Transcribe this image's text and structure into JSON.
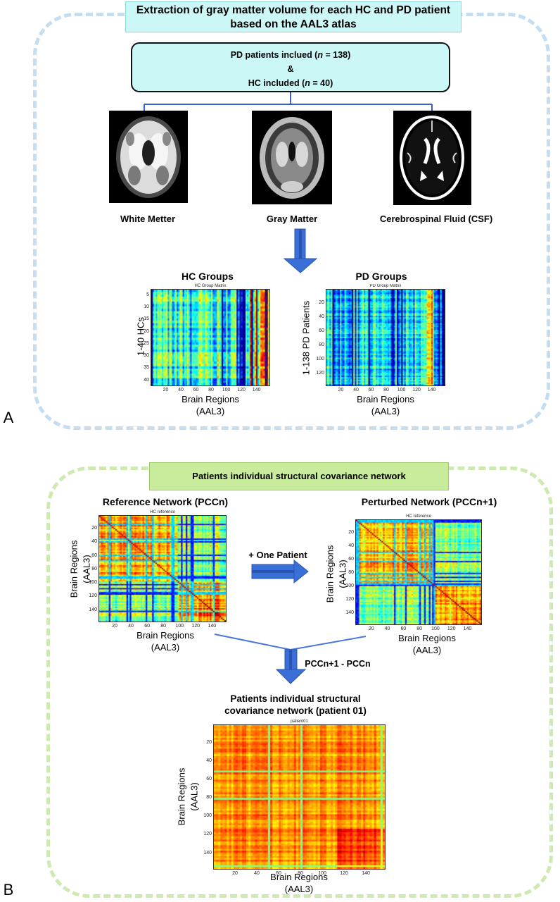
{
  "panel_a": {
    "letter": "A",
    "top_box": "Extraction of gray matter volume for each HC and PD patient based on the AAL3 atlas",
    "included": {
      "pd_prefix": "PD patients inclued (",
      "pd_n": "n",
      "pd_suffix": " = 138)",
      "amp": "&",
      "hc_prefix": "HC included (",
      "hc_n": "n",
      "hc_suffix": " = 40)"
    },
    "tissues": [
      "White Metter",
      "Gray Matter",
      "Cerebrospinal Fluid (CSF)"
    ],
    "hc": {
      "heading": "HC Groups",
      "matrix_title": "HC Group Matrix",
      "ylabel": "1-40 HCs",
      "xlabel_1": "Brain Regions",
      "xlabel_2": "(AAL3)",
      "yticks": [
        "5",
        "10",
        "15",
        "20",
        "25",
        "30",
        "35",
        "40"
      ],
      "xticks": [
        "20",
        "40",
        "60",
        "80",
        "100",
        "120",
        "140"
      ]
    },
    "pd": {
      "heading": "PD Groups",
      "matrix_title": "PD Group Matrix",
      "ylabel": "1-138 PD Patients",
      "xlabel_1": "Brain Regions",
      "xlabel_2": "(AAL3)",
      "yticks": [
        "20",
        "40",
        "60",
        "80",
        "100",
        "120"
      ],
      "xticks": [
        "20",
        "40",
        "60",
        "80",
        "100",
        "120",
        "140"
      ]
    }
  },
  "panel_b": {
    "letter": "B",
    "top_box": "Patients individual structural covariance network",
    "reference": {
      "heading": "Reference Network (PCCn)",
      "matrix_title": "HC reference",
      "ylabel_1": "Brain Regions",
      "ylabel_2": "(AAL3)",
      "xlabel_1": "Brain Regions",
      "xlabel_2": "(AAL3)",
      "ticks": [
        "20",
        "40",
        "60",
        "80",
        "100",
        "120",
        "140"
      ]
    },
    "perturbed": {
      "heading": "Perturbed Network (PCCn+1)",
      "matrix_title": "HC reference",
      "ylabel_1": "Brain Regions",
      "ylabel_2": "(AAL3)",
      "xlabel_1": "Brain Regions",
      "xlabel_2": "(AAL3)",
      "ticks": [
        "20",
        "40",
        "60",
        "80",
        "100",
        "120",
        "140"
      ]
    },
    "one_patient": "+ One Patient",
    "difference": "PCCn+1 - PCCn",
    "result": {
      "heading_1": "Patients individual structural",
      "heading_2": "covariance network (patient 01)",
      "matrix_title": "patient01",
      "ylabel_1": "Brain Regions",
      "ylabel_2": "(AAL3)",
      "xlabel_1": "Brain Regions",
      "xlabel_2": "(AAL3)",
      "ticks": [
        "20",
        "40",
        "60",
        "80",
        "100",
        "120",
        "140"
      ]
    }
  },
  "colors": {
    "panel_a_border": "#c5ddf0",
    "panel_b_border": "#cfeab0",
    "box_cyan": "#ccf7f7",
    "box_green": "#c9ec9c",
    "arrow_blue": "#3a6fd8",
    "connector": "#3a5fc8"
  }
}
